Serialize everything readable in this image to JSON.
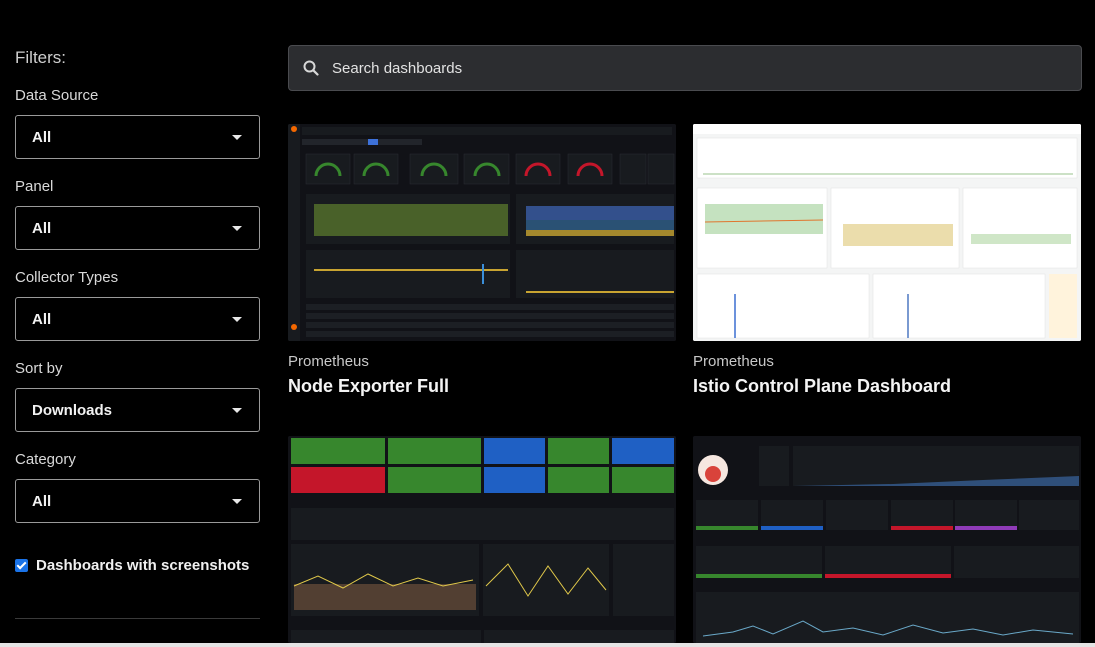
{
  "sidebar": {
    "title": "Filters:",
    "filters": [
      {
        "label": "Data Source",
        "value": "All"
      },
      {
        "label": "Panel",
        "value": "All"
      },
      {
        "label": "Collector Types",
        "value": "All"
      },
      {
        "label": "Sort by",
        "value": "Downloads"
      },
      {
        "label": "Category",
        "value": "All"
      }
    ],
    "screenshots_checkbox": {
      "label": "Dashboards with screenshots",
      "checked": true
    }
  },
  "search": {
    "placeholder": "Search dashboards"
  },
  "dashboards": [
    {
      "source": "Prometheus",
      "title": "Node Exporter Full"
    },
    {
      "source": "Prometheus",
      "title": "Istio Control Plane Dashboard"
    },
    {
      "source": "",
      "title": ""
    },
    {
      "source": "",
      "title": ""
    }
  ],
  "colors": {
    "accent": "#1a73e8",
    "search_bg": "#2c2d30",
    "panel_green": "#37872d",
    "panel_red": "#c4162a",
    "panel_blue": "#1f60c4"
  }
}
